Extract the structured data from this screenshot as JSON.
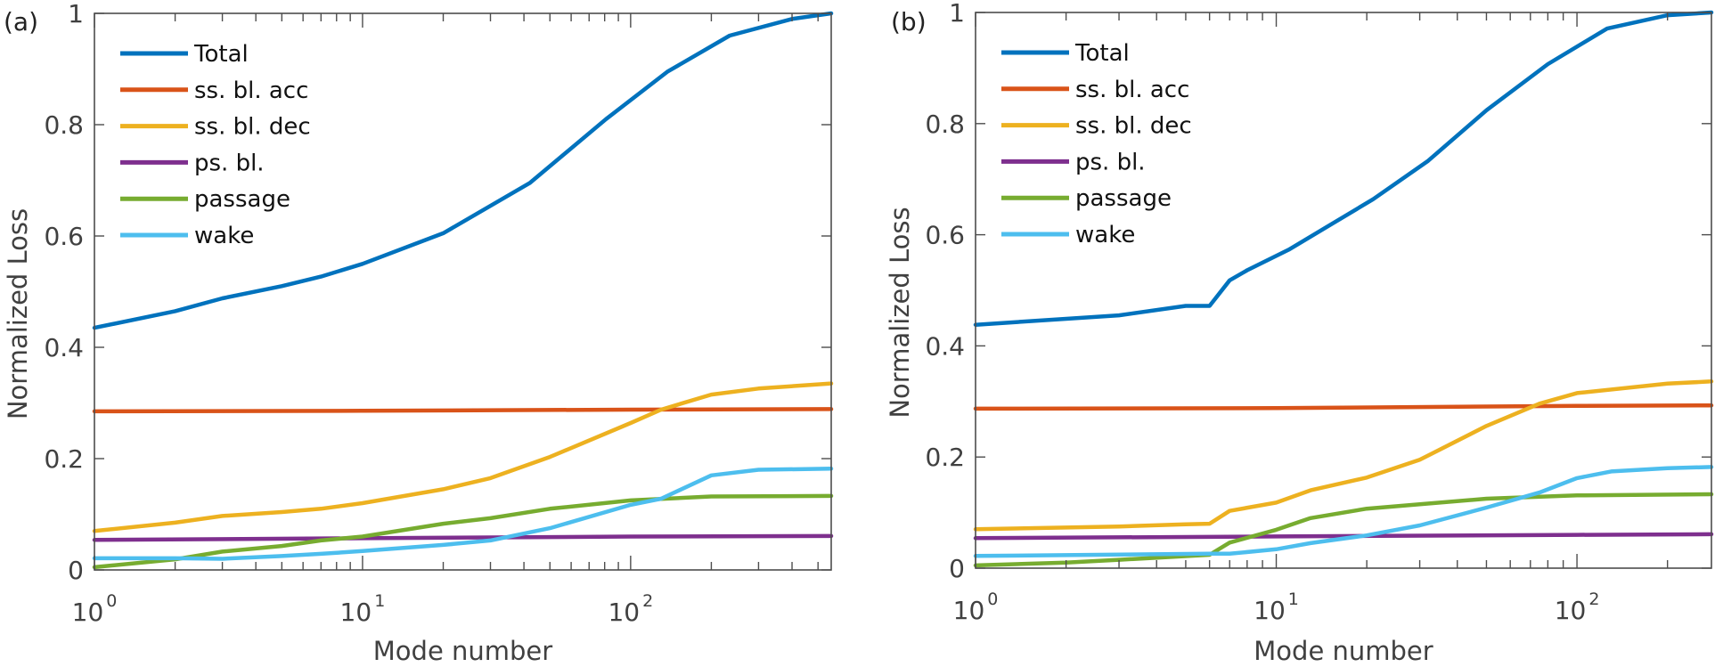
{
  "chart_data": [
    {
      "type": "line",
      "panel_label": "(a)",
      "xlabel": "Mode number",
      "ylabel": "Normalized Loss",
      "xscale": "log",
      "xlim": [
        1,
        560
      ],
      "ylim": [
        0,
        1
      ],
      "xticks": [
        {
          "base": "10",
          "exp": "0",
          "value": 1
        },
        {
          "base": "10",
          "exp": "1",
          "value": 10
        },
        {
          "base": "10",
          "exp": "2",
          "value": 100
        }
      ],
      "yticks": [
        {
          "label": "0",
          "value": 0
        },
        {
          "label": "0.2",
          "value": 0.2
        },
        {
          "label": "0.4",
          "value": 0.4
        },
        {
          "label": "0.6",
          "value": 0.6
        },
        {
          "label": "0.8",
          "value": 0.8
        },
        {
          "label": "1",
          "value": 1
        }
      ],
      "grid": false,
      "legend_position": "top-left",
      "series": [
        {
          "name": "Total",
          "color": "#0072BD",
          "x": [
            1,
            2,
            3,
            5,
            7,
            10,
            20,
            42,
            81,
            137,
            234,
            400,
            560
          ],
          "values": [
            0.435,
            0.465,
            0.488,
            0.51,
            0.527,
            0.55,
            0.605,
            0.695,
            0.81,
            0.895,
            0.96,
            0.99,
            1.0
          ]
        },
        {
          "name": "ss. bl. acc",
          "color": "#D95319",
          "x": [
            1,
            10,
            100,
            560
          ],
          "values": [
            0.285,
            0.286,
            0.288,
            0.289
          ]
        },
        {
          "name": "ss. bl. dec",
          "color": "#EDB120",
          "x": [
            1,
            2,
            3,
            5,
            7,
            10,
            20,
            30,
            50,
            100,
            130,
            200,
            300,
            560
          ],
          "values": [
            0.07,
            0.085,
            0.097,
            0.104,
            0.11,
            0.12,
            0.145,
            0.165,
            0.203,
            0.264,
            0.288,
            0.315,
            0.326,
            0.335
          ]
        },
        {
          "name": "ps. bl.",
          "color": "#7E2F8E",
          "x": [
            1,
            10,
            100,
            560
          ],
          "values": [
            0.054,
            0.057,
            0.06,
            0.061
          ]
        },
        {
          "name": "passage",
          "color": "#77AC30",
          "x": [
            1,
            2,
            3,
            5,
            7,
            10,
            20,
            30,
            50,
            100,
            200,
            560
          ],
          "values": [
            0.005,
            0.019,
            0.033,
            0.043,
            0.053,
            0.06,
            0.083,
            0.093,
            0.11,
            0.125,
            0.132,
            0.133
          ]
        },
        {
          "name": "wake",
          "color": "#4DBEEE",
          "x": [
            1,
            2,
            3,
            5,
            7,
            10,
            20,
            30,
            50,
            100,
            130,
            200,
            300,
            560
          ],
          "values": [
            0.021,
            0.021,
            0.02,
            0.025,
            0.029,
            0.034,
            0.045,
            0.053,
            0.075,
            0.117,
            0.128,
            0.17,
            0.18,
            0.182
          ]
        }
      ]
    },
    {
      "type": "line",
      "panel_label": "(b)",
      "xlabel": "Mode number",
      "ylabel": "Normalized Loss",
      "xscale": "log",
      "xlim": [
        1,
        280
      ],
      "ylim": [
        0,
        1
      ],
      "xticks": [
        {
          "base": "10",
          "exp": "0",
          "value": 1
        },
        {
          "base": "10",
          "exp": "1",
          "value": 10
        },
        {
          "base": "10",
          "exp": "2",
          "value": 100
        }
      ],
      "yticks": [
        {
          "label": "0",
          "value": 0
        },
        {
          "label": "0.2",
          "value": 0.2
        },
        {
          "label": "0.4",
          "value": 0.4
        },
        {
          "label": "0.6",
          "value": 0.6
        },
        {
          "label": "0.8",
          "value": 0.8
        },
        {
          "label": "1",
          "value": 1
        }
      ],
      "grid": false,
      "legend_position": "top-left",
      "series": [
        {
          "name": "Total",
          "color": "#0072BD",
          "x": [
            1,
            3,
            5,
            6,
            7,
            8,
            11,
            21,
            32,
            50,
            80,
            126,
            200,
            280
          ],
          "values": [
            0.438,
            0.455,
            0.472,
            0.472,
            0.518,
            0.536,
            0.573,
            0.664,
            0.733,
            0.824,
            0.907,
            0.971,
            0.995,
            1.0
          ]
        },
        {
          "name": "ss. bl. acc",
          "color": "#D95319",
          "x": [
            1,
            10,
            100,
            280
          ],
          "values": [
            0.287,
            0.288,
            0.292,
            0.293
          ]
        },
        {
          "name": "ss. bl. dec",
          "color": "#EDB120",
          "x": [
            1,
            3,
            5,
            6,
            7,
            10,
            13,
            20,
            30,
            50,
            75,
            100,
            200,
            280
          ],
          "values": [
            0.07,
            0.075,
            0.079,
            0.08,
            0.103,
            0.118,
            0.14,
            0.163,
            0.195,
            0.256,
            0.296,
            0.315,
            0.332,
            0.336
          ]
        },
        {
          "name": "ps. bl.",
          "color": "#7E2F8E",
          "x": [
            1,
            10,
            100,
            280
          ],
          "values": [
            0.054,
            0.057,
            0.06,
            0.061
          ]
        },
        {
          "name": "passage",
          "color": "#77AC30",
          "x": [
            1,
            2,
            3,
            6,
            7,
            10,
            13,
            20,
            30,
            50,
            100,
            280
          ],
          "values": [
            0.005,
            0.01,
            0.015,
            0.024,
            0.046,
            0.069,
            0.09,
            0.107,
            0.115,
            0.125,
            0.131,
            0.133
          ]
        },
        {
          "name": "wake",
          "color": "#4DBEEE",
          "x": [
            1,
            6,
            7,
            10,
            13,
            20,
            30,
            50,
            75,
            100,
            130,
            200,
            280
          ],
          "values": [
            0.022,
            0.026,
            0.026,
            0.034,
            0.045,
            0.059,
            0.077,
            0.109,
            0.136,
            0.162,
            0.174,
            0.18,
            0.182
          ]
        }
      ]
    }
  ]
}
